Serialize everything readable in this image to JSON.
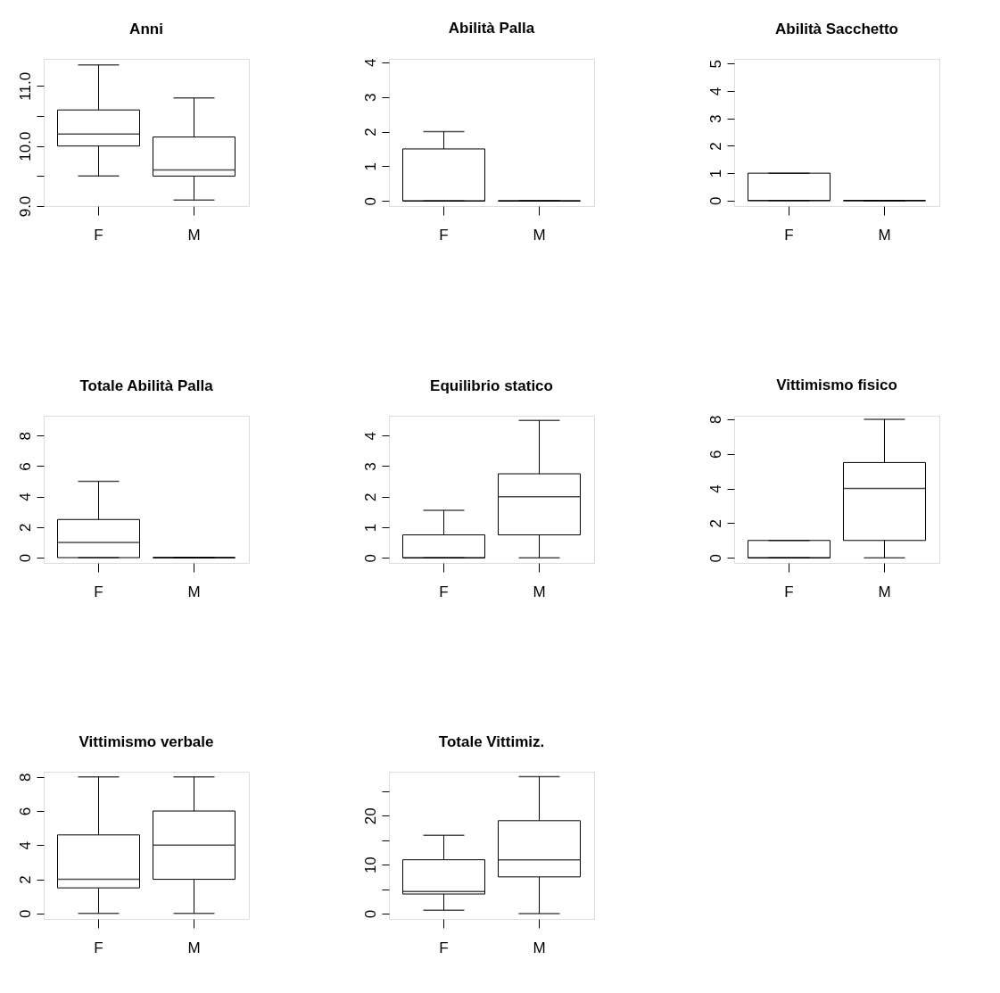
{
  "chart_data": [
    {
      "type": "box",
      "title": "Anni",
      "categories": [
        "F",
        "M"
      ],
      "boxes": [
        {
          "low": 9.5,
          "q1": 10.0,
          "median": 10.2,
          "q3": 10.6,
          "high": 11.35
        },
        {
          "low": 9.1,
          "q1": 9.5,
          "median": 9.6,
          "q3": 10.15,
          "high": 10.8
        }
      ],
      "ylim": [
        9.0,
        11.45
      ],
      "yticks": [
        {
          "value": 9.0,
          "label": "9.0"
        },
        {
          "value": 9.5,
          "label": null
        },
        {
          "value": 10.0,
          "label": "10.0"
        },
        {
          "value": 10.5,
          "label": null
        },
        {
          "value": 11.0,
          "label": "11.0"
        }
      ]
    },
    {
      "type": "box",
      "title": "Abilità Palla",
      "categories": [
        "F",
        "M"
      ],
      "boxes": [
        {
          "low": 0,
          "q1": 0,
          "median": 0,
          "q3": 1.5,
          "high": 2
        },
        {
          "low": 0,
          "q1": 0,
          "median": 0,
          "q3": 0,
          "high": 0
        }
      ],
      "ylim": [
        -0.15,
        4.1
      ],
      "yticks": [
        0,
        1,
        2,
        3,
        4
      ]
    },
    {
      "type": "box",
      "title": "Abilità Sacchetto",
      "categories": [
        "F",
        "M"
      ],
      "boxes": [
        {
          "low": 0,
          "q1": 0,
          "median": 0,
          "q3": 1,
          "high": 1
        },
        {
          "low": 0,
          "q1": 0,
          "median": 0,
          "q3": 0,
          "high": 0
        }
      ],
      "ylim": [
        -0.2,
        5.17
      ],
      "yticks": [
        0,
        1,
        2,
        3,
        4,
        5
      ]
    },
    {
      "type": "box",
      "title": "Totale Abilità Palla",
      "categories": [
        "F",
        "M"
      ],
      "boxes": [
        {
          "low": 0,
          "q1": 0,
          "median": 1,
          "q3": 2.5,
          "high": 5
        },
        {
          "low": 0,
          "q1": 0,
          "median": 0,
          "q3": 0,
          "high": 0
        }
      ],
      "ylim": [
        -0.35,
        9.3
      ],
      "yticks": [
        0,
        2,
        4,
        6,
        8
      ]
    },
    {
      "type": "box",
      "title": "Equilibrio statico",
      "categories": [
        "F",
        "M"
      ],
      "boxes": [
        {
          "low": 0,
          "q1": 0,
          "median": 0,
          "q3": 0.75,
          "high": 1.55
        },
        {
          "low": 0,
          "q1": 0.75,
          "median": 2.0,
          "q3": 2.75,
          "high": 4.5
        }
      ],
      "ylim": [
        -0.17,
        4.65
      ],
      "yticks": [
        0,
        1,
        2,
        3,
        4
      ]
    },
    {
      "type": "box",
      "title": "Vittimismo fisico",
      "categories": [
        "F",
        "M"
      ],
      "boxes": [
        {
          "low": 0,
          "q1": 0,
          "median": 0,
          "q3": 1,
          "high": 1
        },
        {
          "low": 0,
          "q1": 1,
          "median": 4,
          "q3": 5.5,
          "high": 8
        }
      ],
      "ylim": [
        -0.3,
        8.2
      ],
      "yticks": [
        0,
        2,
        4,
        6,
        8
      ]
    },
    {
      "type": "box",
      "title": "Vittimismo verbale",
      "categories": [
        "F",
        "M"
      ],
      "boxes": [
        {
          "low": 0,
          "q1": 1.5,
          "median": 2,
          "q3": 4.6,
          "high": 8
        },
        {
          "low": 0,
          "q1": 2,
          "median": 4,
          "q3": 6,
          "high": 8
        }
      ],
      "ylim": [
        -0.32,
        8.3
      ],
      "yticks": [
        0,
        2,
        4,
        6,
        8
      ]
    },
    {
      "type": "box",
      "title": "Totale Vittimiz.",
      "categories": [
        "F",
        "M"
      ],
      "boxes": [
        {
          "low": 0.7,
          "q1": 4,
          "median": 4.5,
          "q3": 11,
          "high": 16
        },
        {
          "low": 0,
          "q1": 7.5,
          "median": 11,
          "q3": 19,
          "high": 28
        }
      ],
      "ylim": [
        -1.1,
        29.0
      ],
      "yticks": [
        0,
        {
          "value": 5,
          "label": null
        },
        10,
        {
          "value": 15,
          "label": null
        },
        20,
        {
          "value": 25,
          "label": null
        }
      ]
    }
  ]
}
